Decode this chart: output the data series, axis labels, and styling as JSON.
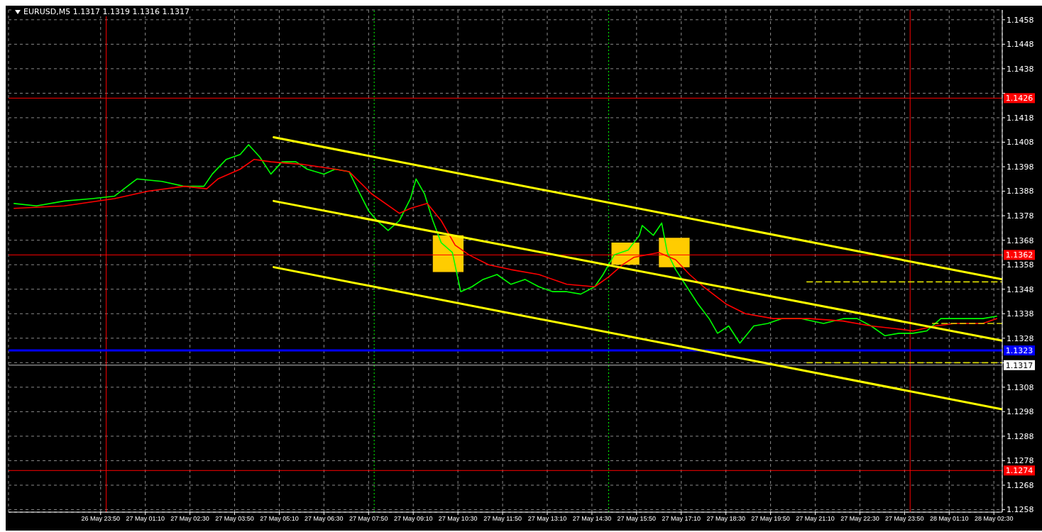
{
  "chart_data": {
    "type": "line",
    "title": "EURUSD,M5  1.1317 1.1319 1.1316 1.1317",
    "xlim": [
      "--05-26T21:05",
      "--05-28T02:45"
    ],
    "ylim": [
      1.1257,
      1.1462
    ],
    "xticks": [
      {
        "value": "--05-26T23:50",
        "label": "26 May 23:50"
      },
      {
        "value": "--05-27T01:10",
        "label": "27 May 01:10"
      },
      {
        "value": "--05-27T02:30",
        "label": "27 May 02:30"
      },
      {
        "value": "--05-27T03:50",
        "label": "27 May 03:50"
      },
      {
        "value": "--05-27T05:10",
        "label": "27 May 05:10"
      },
      {
        "value": "--05-27T06:30",
        "label": "27 May 06:30"
      },
      {
        "value": "--05-27T07:50",
        "label": "27 May 07:50"
      },
      {
        "value": "--05-27T09:10",
        "label": "27 May 09:10"
      },
      {
        "value": "--05-27T10:30",
        "label": "27 May 10:30"
      },
      {
        "value": "--05-27T11:50",
        "label": "27 May 11:50"
      },
      {
        "value": "--05-27T13:10",
        "label": "27 May 13:10"
      },
      {
        "value": "--05-27T14:30",
        "label": "27 May 14:30"
      },
      {
        "value": "--05-27T15:50",
        "label": "27 May 15:50"
      },
      {
        "value": "--05-27T17:10",
        "label": "27 May 17:10"
      },
      {
        "value": "--05-27T18:30",
        "label": "27 May 18:30"
      },
      {
        "value": "--05-27T19:50",
        "label": "27 May 19:50"
      },
      {
        "value": "--05-27T21:10",
        "label": "27 May 21:10"
      },
      {
        "value": "--05-27T22:30",
        "label": "27 May 22:30"
      },
      {
        "value": "--05-27T23:50",
        "label": "27 May 23:50"
      },
      {
        "value": "--05-28T01:10",
        "label": "28 May 01:10"
      },
      {
        "value": "--05-28T02:30",
        "label": "28 May 02:30"
      }
    ],
    "yticks": [
      1.1258,
      1.1268,
      1.1278,
      1.1288,
      1.1298,
      1.1308,
      {
        "value": 1.1318,
        "label": null
      },
      1.1328,
      1.1338,
      1.1348,
      1.1358,
      1.1368,
      1.1378,
      1.1388,
      1.1398,
      1.1408,
      1.1418,
      {
        "value": 1.1428,
        "label": null
      },
      1.1438,
      1.1448,
      1.1458
    ],
    "grid": true,
    "series": [
      {
        "color": "#00ff00",
        "line_style": "solid",
        "x": [
          "--05-26T21:15",
          "--05-26T21:55",
          "--05-26T22:45",
          "--05-26T23:35",
          "--05-27T00:15",
          "--05-27T00:55",
          "--05-27T01:40",
          "--05-27T02:20",
          "--05-27T02:55",
          "--05-27T03:10",
          "--05-27T03:35",
          "--05-27T04:00",
          "--05-27T04:15",
          "--05-27T04:35",
          "--05-27T04:55",
          "--05-27T05:15",
          "--05-27T05:40",
          "--05-27T06:00",
          "--05-27T06:30",
          "--05-27T06:50",
          "--05-27T07:15",
          "--05-27T07:30",
          "--05-27T07:50",
          "--05-27T08:05",
          "--05-27T08:25",
          "--05-27T08:45",
          "--05-27T09:05",
          "--05-27T09:15",
          "--05-27T09:30",
          "--05-27T09:45",
          "--05-27T10:00",
          "--05-27T10:20",
          "--05-27T10:35",
          "--05-27T10:55",
          "--05-27T11:15",
          "--05-27T11:40",
          "--05-27T12:05",
          "--05-27T12:30",
          "--05-27T12:55",
          "--05-27T13:20",
          "--05-27T13:45",
          "--05-27T14:10",
          "--05-27T14:35",
          "--05-27T14:50",
          "--05-27T15:10",
          "--05-27T15:35",
          "--05-27T15:55",
          "--05-27T16:00",
          "--05-27T16:20",
          "--05-27T16:35",
          "--05-27T16:45",
          "--05-27T17:00",
          "--05-27T17:20",
          "--05-27T17:40",
          "--05-27T18:00",
          "--05-27T18:15",
          "--05-27T18:35",
          "--05-27T18:55",
          "--05-27T19:20",
          "--05-27T19:45",
          "--05-27T20:10",
          "--05-27T20:45",
          "--05-27T21:25",
          "--05-27T22:00",
          "--05-27T22:25",
          "--05-27T22:50",
          "--05-27T23:15",
          "--05-27T23:40",
          "--05-28T00:05",
          "--05-28T00:30",
          "--05-28T00:55",
          "--05-28T01:20",
          "--05-28T01:45",
          "--05-28T02:10",
          "--05-28T02:35"
        ],
        "values": [
          1.1383,
          1.1382,
          1.1384,
          1.1385,
          1.1386,
          1.1393,
          1.1392,
          1.139,
          1.139,
          1.1395,
          1.1401,
          1.1403,
          1.1407,
          1.1402,
          1.1395,
          1.14,
          1.14,
          1.1397,
          1.1395,
          1.1397,
          1.1396,
          1.1389,
          1.138,
          1.1376,
          1.1372,
          1.1376,
          1.1385,
          1.1393,
          1.1387,
          1.1376,
          1.1367,
          1.1363,
          1.1347,
          1.1349,
          1.1352,
          1.1354,
          1.135,
          1.1352,
          1.1349,
          1.1347,
          1.1347,
          1.1346,
          1.1349,
          1.1354,
          1.1362,
          1.1364,
          1.137,
          1.1374,
          1.137,
          1.1375,
          1.1363,
          1.1356,
          1.1349,
          1.1342,
          1.1336,
          1.133,
          1.1333,
          1.1326,
          1.1333,
          1.1334,
          1.1336,
          1.1336,
          1.1334,
          1.1336,
          1.1336,
          1.1333,
          1.1329,
          1.133,
          1.133,
          1.1331,
          1.1336,
          1.1336,
          1.1336,
          1.1336,
          1.1337
        ]
      },
      {
        "color": "#ff0000",
        "line_style": "solid",
        "x": [
          "--05-26T21:15",
          "--05-26T22:45",
          "--05-27T00:15",
          "--05-27T01:15",
          "--05-27T02:20",
          "--05-27T03:00",
          "--05-27T03:20",
          "--05-27T04:00",
          "--05-27T04:25",
          "--05-27T04:55",
          "--05-27T05:50",
          "--05-27T06:50",
          "--05-27T07:15",
          "--05-27T07:55",
          "--05-27T08:45",
          "--05-27T09:05",
          "--05-27T09:35",
          "--05-27T10:00",
          "--05-27T10:25",
          "--05-27T10:50",
          "--05-27T11:25",
          "--05-27T12:05",
          "--05-27T12:55",
          "--05-27T13:45",
          "--05-27T14:35",
          "--05-27T15:00",
          "--05-27T15:25",
          "--05-27T15:45",
          "--05-27T16:30",
          "--05-27T17:00",
          "--05-27T17:25",
          "--05-27T17:50",
          "--05-27T18:30",
          "--05-27T19:05",
          "--05-27T19:55",
          "--05-27T21:00",
          "--05-27T22:00",
          "--05-27T22:50",
          "--05-27T23:30",
          "--05-28T00:05",
          "--05-28T00:45",
          "--05-28T01:20",
          "--05-28T02:10",
          "--05-28T02:35"
        ],
        "values": [
          1.1381,
          1.1382,
          1.1385,
          1.1388,
          1.139,
          1.1389,
          1.1393,
          1.1397,
          1.1401,
          1.14,
          1.1399,
          1.1397,
          1.1396,
          1.1387,
          1.1379,
          1.1381,
          1.1383,
          1.1376,
          1.1366,
          1.1362,
          1.1358,
          1.1356,
          1.1354,
          1.135,
          1.1349,
          1.1353,
          1.1358,
          1.1361,
          1.1363,
          1.136,
          1.1354,
          1.1349,
          1.1342,
          1.1338,
          1.1336,
          1.1336,
          1.1335,
          1.1333,
          1.1332,
          1.1331,
          1.1333,
          1.1334,
          1.1334,
          1.1336
        ]
      },
      {
        "color": "#ffff00",
        "line_style": "solid",
        "x": [
          "--05-27T05:00",
          "--05-28T02:45"
        ],
        "values": [
          1.141,
          1.1352
        ]
      },
      {
        "color": "#ffff00",
        "line_style": "solid",
        "x": [
          "--05-27T05:00",
          "--05-28T02:45"
        ],
        "values": [
          1.1384,
          1.1327
        ]
      },
      {
        "color": "#ffff00",
        "line_style": "solid",
        "x": [
          "--05-27T05:00",
          "--05-28T02:45"
        ],
        "values": [
          1.1357,
          1.1299
        ]
      },
      {
        "color": "#d8d800",
        "line_style": "dashed",
        "x": [
          "--05-27T20:55",
          "--05-28T02:45"
        ],
        "values": [
          1.1351,
          1.1351
        ]
      },
      {
        "color": "#d8d800",
        "line_style": "dashed",
        "x": [
          "--05-28T00:40",
          "--05-28T02:45"
        ],
        "values": [
          1.1334,
          1.1334
        ]
      },
      {
        "color": "#d8d800",
        "line_style": "dashed",
        "x": [
          "--05-27T20:55",
          "--05-28T02:45"
        ],
        "values": [
          1.1318,
          1.1318
        ]
      },
      {
        "color": "#ffcc00",
        "x": [
          "--05-27T09:45",
          "--05-27T10:40"
        ],
        "values": [
          null,
          null
        ],
        "lower": [
          1.1355,
          1.1355
        ],
        "upper": [
          1.137,
          1.137
        ]
      },
      {
        "color": "#ffcc00",
        "x": [
          "--05-27T15:05",
          "--05-27T15:55"
        ],
        "values": [
          null,
          null
        ],
        "lower": [
          1.1358,
          1.1358
        ],
        "upper": [
          1.1367,
          1.1367
        ]
      },
      {
        "color": "#ffcc00",
        "x": [
          "--05-27T16:30",
          "--05-27T17:25"
        ],
        "values": [
          null,
          null
        ],
        "lower": [
          1.1357,
          1.1357
        ],
        "upper": [
          1.1369,
          1.1369
        ]
      }
    ],
    "ref_lines": [
      {
        "axis": "y",
        "value": 1.1426,
        "label": "1.1426",
        "color": "#ff0000"
      },
      {
        "axis": "y",
        "value": 1.1362,
        "label": "1.1362",
        "color": "#ff0000"
      },
      {
        "axis": "y",
        "value": 1.1323,
        "label": "1.1323",
        "color": "#0000ff"
      },
      {
        "axis": "y",
        "value": 1.1317,
        "label": "1.1317",
        "color": "#c0c0c0"
      },
      {
        "axis": "y",
        "value": 1.1274,
        "label": "1.1274",
        "color": "#ff0000"
      },
      {
        "axis": "x",
        "value": "--05-27T00:00",
        "color": "#ff0000",
        "line_style": "solid"
      },
      {
        "axis": "x",
        "value": "--05-28T00:00",
        "color": "#ff0000",
        "line_style": "solid"
      },
      {
        "axis": "x",
        "value": "--05-27T08:00",
        "color": "#00ff00",
        "line_style": "dotted"
      },
      {
        "axis": "x",
        "value": "--05-27T15:00",
        "color": "#00ff00",
        "line_style": "dotted"
      }
    ]
  }
}
